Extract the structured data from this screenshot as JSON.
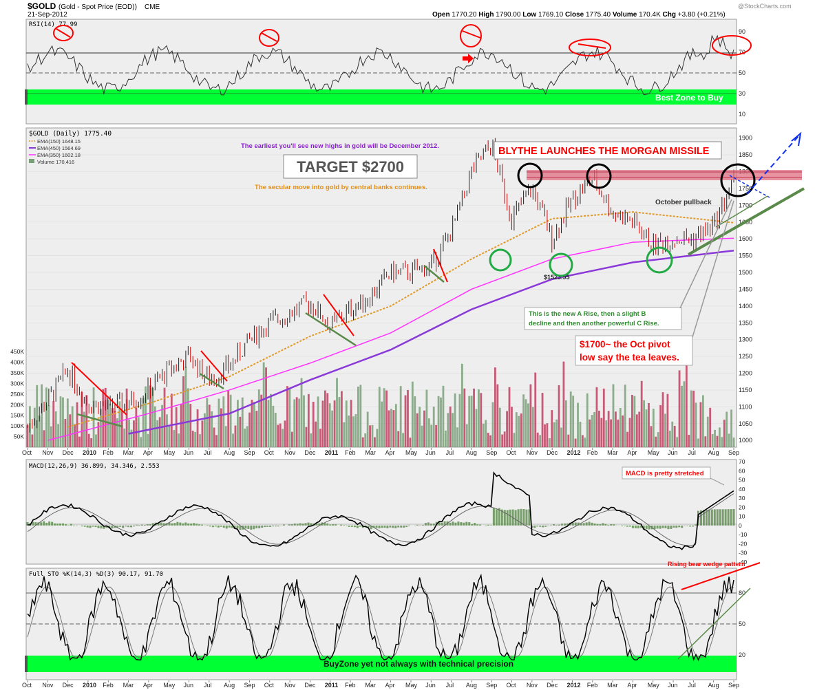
{
  "header": {
    "symbol": "$GOLD",
    "description": "(Gold - Spot Price (EOD))",
    "exchange": "CME",
    "date": "21-Sep-2012",
    "quote": {
      "open_label": "Open",
      "open": "1770.20",
      "high_label": "High",
      "high": "1790.00",
      "low_label": "Low",
      "low": "1769.10",
      "close_label": "Close",
      "close": "1775.40",
      "volume_label": "Volume",
      "volume": "170.4K",
      "chg_label": "Chg",
      "chg": "+3.80 (+0.21%)"
    },
    "watermark": "@StockCharts.com"
  },
  "colors": {
    "panel_bg": "#eeeeee",
    "frame": "#ffffff",
    "green_zone": "#00ff33",
    "price_up": "#222222",
    "price_down": "#cc0000",
    "ema150": "#e09a2a",
    "ema450": "#8a39d8",
    "ema350": "#ff33ff",
    "vol_up": "#7aa07a",
    "vol_down": "#c04060",
    "annot_red": "#ff0000",
    "annot_green": "#22aa44",
    "annot_black": "#000000",
    "annot_blue": "#1133ee"
  },
  "rsi": {
    "label": "RSI(14) 77.99",
    "ticks": [
      "90",
      "70",
      "50",
      "30",
      "10"
    ],
    "zone_text": "Best Zone to Buy"
  },
  "price": {
    "legend": {
      "title": "$GOLD (Daily) 1775.40",
      "ema150": "EMA(150) 1648.15",
      "ema450": "EMA(450) 1564.69",
      "ema350": "EMA(350) 1602.18",
      "volume": "Volume 170,416"
    },
    "y_ticks": [
      "1900",
      "1850",
      "1800",
      "1750",
      "1700",
      "1650",
      "1600",
      "1550",
      "1500",
      "1450",
      "1400",
      "1350",
      "1300",
      "1250",
      "1200",
      "1150",
      "1100",
      "1050",
      "1000"
    ],
    "vol_ticks": [
      "450K",
      "400K",
      "350K",
      "300K",
      "250K",
      "200K",
      "150K",
      "100K",
      "50K"
    ],
    "low_label": "$1523.95",
    "annotations": {
      "earliest": "The earliest you'll see new highs in gold will be December 2012.",
      "target": "TARGET $2700",
      "secular": "The secular move into gold by central banks continues.",
      "blythe": "BLYTHE LAUNCHES THE MORGAN MISSILE",
      "pullback": "October pullback",
      "abc_line1": "This is the new A Rise, then a slight B",
      "abc_line2": "decline and then another powerful C Rise.",
      "pivot_line1": "$1700~ the Oct pivot",
      "pivot_line2": "low say the tea leaves."
    }
  },
  "x_axis": [
    "Oct",
    "Nov",
    "Dec",
    "2010",
    "Feb",
    "Mar",
    "Apr",
    "May",
    "Jun",
    "Jul",
    "Aug",
    "Sep",
    "Oct",
    "Nov",
    "Dec",
    "2011",
    "Feb",
    "Mar",
    "Apr",
    "May",
    "Jun",
    "Jul",
    "Aug",
    "Sep",
    "Oct",
    "Nov",
    "Dec",
    "2012",
    "Feb",
    "Mar",
    "Apr",
    "May",
    "Jun",
    "Jul",
    "Aug",
    "Sep"
  ],
  "macd": {
    "label": "MACD(12,26,9) 36.899, 34.346, 2.553",
    "ticks": [
      "70",
      "60",
      "50",
      "40",
      "30",
      "20",
      "10",
      "0",
      "-10",
      "-20",
      "-30",
      "-40"
    ],
    "note": "MACD is pretty stretched"
  },
  "sto": {
    "label": "Full STO %K(14,3) %D(3) 90.17, 91.70",
    "ticks": [
      "80",
      "50",
      "20"
    ],
    "note": "Rising bear wedge pattern",
    "zone_text": "BuyZone yet not always with technical precision"
  },
  "chart_data": {
    "type": "line",
    "title": "$GOLD (Gold - Spot Price (EOD)) CME",
    "x_range": [
      "Oct 2009",
      "Sep 2012"
    ],
    "price": {
      "ylim": [
        980,
        1930
      ],
      "series": [
        {
          "name": "$GOLD (Daily)",
          "x": [
            "Oct 2009",
            "Nov 2009",
            "Dec 2009",
            "Jan 2010",
            "Feb 2010",
            "Mar 2010",
            "Apr 2010",
            "May 2010",
            "Jun 2010",
            "Jul 2010",
            "Aug 2010",
            "Sep 2010",
            "Oct 2010",
            "Nov 2010",
            "Dec 2010",
            "Jan 2011",
            "Feb 2011",
            "Mar 2011",
            "Apr 2011",
            "May 2011",
            "Jun 2011",
            "Jul 2011",
            "Aug 2011",
            "Sep 2011",
            "Oct 2011",
            "Nov 2011",
            "Dec 2011",
            "Jan 2012",
            "Feb 2012",
            "Mar 2012",
            "Apr 2012",
            "May 2012",
            "Jun 2012",
            "Jul 2012",
            "Aug 2012",
            "Sep 2012"
          ],
          "values": [
            1040,
            1120,
            1210,
            1110,
            1100,
            1110,
            1150,
            1210,
            1250,
            1180,
            1220,
            1300,
            1350,
            1380,
            1410,
            1340,
            1390,
            1430,
            1500,
            1500,
            1520,
            1620,
            1800,
            1880,
            1660,
            1750,
            1600,
            1720,
            1780,
            1680,
            1650,
            1580,
            1600,
            1600,
            1640,
            1775
          ]
        },
        {
          "name": "EMA(150)",
          "x": [
            "Dec 2009",
            "Apr 2010",
            "Aug 2010",
            "Dec 2010",
            "Apr 2011",
            "Aug 2011",
            "Dec 2011",
            "Apr 2012",
            "Sep 2012"
          ],
          "values": [
            1040,
            1110,
            1190,
            1310,
            1400,
            1540,
            1660,
            1680,
            1648
          ]
        },
        {
          "name": "EMA(350)",
          "x": [
            "Nov 2009",
            "Apr 2010",
            "Aug 2010",
            "Dec 2010",
            "Apr 2011",
            "Aug 2011",
            "Dec 2011",
            "Apr 2012",
            "Sep 2012"
          ],
          "values": [
            1000,
            1080,
            1150,
            1230,
            1320,
            1450,
            1540,
            1590,
            1602
          ]
        },
        {
          "name": "EMA(450)",
          "x": [
            "Mar 2010",
            "Aug 2010",
            "Dec 2010",
            "Apr 2011",
            "Aug 2011",
            "Dec 2011",
            "Apr 2012",
            "Sep 2012"
          ],
          "values": [
            1020,
            1080,
            1180,
            1270,
            1390,
            1480,
            1530,
            1565
          ]
        }
      ]
    },
    "volume": {
      "last": 170416,
      "ylim": [
        0,
        470000
      ]
    },
    "rsi": {
      "period": 14,
      "last": 77.99,
      "ylim": [
        10,
        90
      ]
    },
    "macd": {
      "params": [
        12,
        26,
        9
      ],
      "macd": 36.899,
      "signal": 34.346,
      "histogram": 2.553,
      "ylim": [
        -40,
        70
      ]
    },
    "sto": {
      "k": 90.17,
      "d": 91.7,
      "ylim": [
        20,
        80
      ]
    }
  }
}
